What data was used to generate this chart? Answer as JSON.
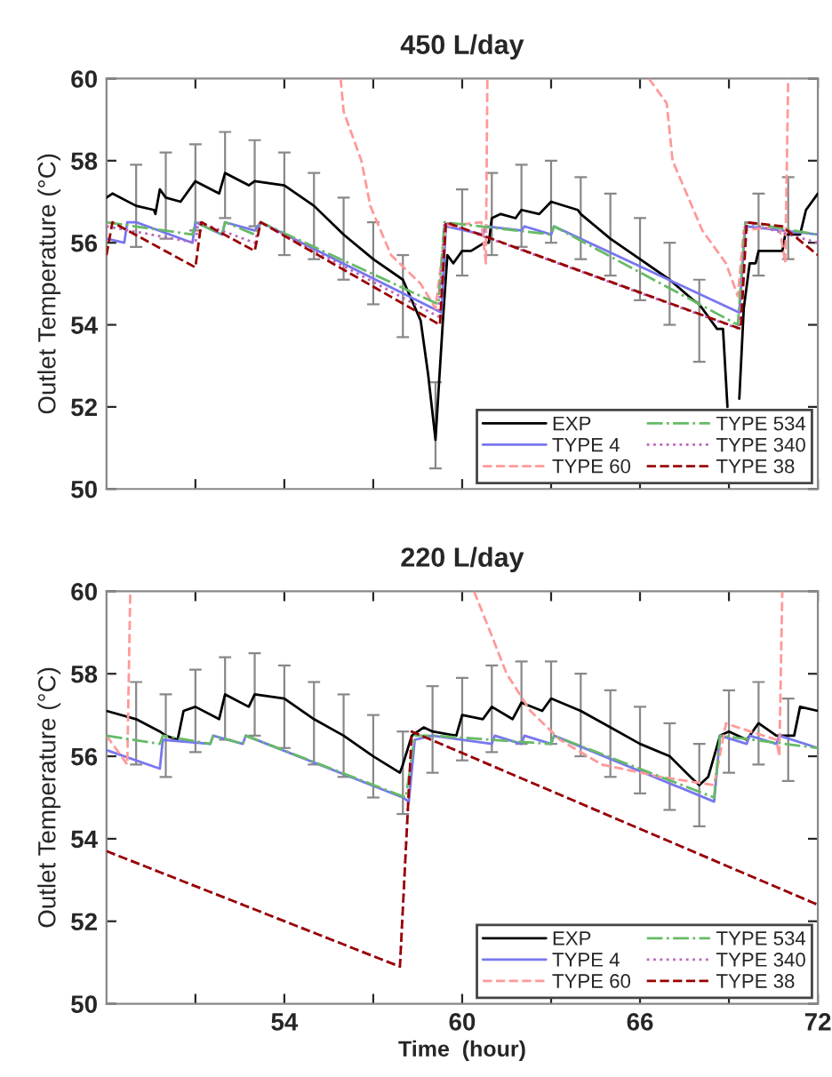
{
  "chart_data": [
    {
      "type": "line",
      "title": "450 L/day",
      "ylabel": "Outlet Temperature (°C)",
      "xlim": [
        48,
        72
      ],
      "ylim": [
        50,
        60
      ],
      "xticks": [
        {
          "value": 51,
          "label": null
        },
        {
          "value": 54,
          "label": null
        },
        {
          "value": 57,
          "label": null
        },
        {
          "value": 60,
          "label": null
        },
        {
          "value": 63,
          "label": null
        },
        {
          "value": 66,
          "label": null
        },
        {
          "value": 69,
          "label": null
        },
        {
          "value": 72,
          "label": null
        }
      ],
      "yticks": [
        50,
        52,
        54,
        56,
        58,
        60
      ],
      "tick_labels": "y",
      "grid": false,
      "legend": "bottom right",
      "series": [
        {
          "name": "EXP",
          "color": "#000000",
          "line_style": "solid",
          "x": [
            48.0,
            48.2,
            49.0,
            49.6,
            49.65,
            49.8,
            50.0,
            50.5,
            51.0,
            51.8,
            52.0,
            52.8,
            53.0,
            54.0,
            55.0,
            56.0,
            57.0,
            58.0,
            58.6,
            58.85,
            59.1,
            59.35,
            59.5,
            59.7,
            60.0,
            60.3,
            60.75,
            60.9,
            61.0,
            61.3,
            61.8,
            62.0,
            62.6,
            63.0,
            63.9,
            64.0,
            65.0,
            66.0,
            67.0,
            67.8,
            68.0,
            68.6,
            68.8,
            68.95,
            69.1,
            69.35,
            69.5,
            69.7,
            69.9,
            70.0,
            70.5,
            70.8,
            70.9,
            71.0,
            71.4,
            71.6,
            72.0
          ],
          "values": [
            57.1,
            57.2,
            56.9,
            56.8,
            56.7,
            57.3,
            57.1,
            57.0,
            57.5,
            57.2,
            57.7,
            57.4,
            57.5,
            57.4,
            56.9,
            56.2,
            55.6,
            55.1,
            54.1,
            52.8,
            51.2,
            54.1,
            55.7,
            55.5,
            55.8,
            55.8,
            56.0,
            56.0,
            56.6,
            56.7,
            56.6,
            56.8,
            56.7,
            57.0,
            56.8,
            56.7,
            56.1,
            55.6,
            55.1,
            54.6,
            54.5,
            53.9,
            53.9,
            52.0,
            null,
            52.2,
            54.4,
            55.5,
            55.5,
            55.8,
            55.8,
            55.8,
            56.2,
            56.2,
            56.2,
            56.8,
            57.2
          ],
          "errors": [
            null,
            null,
            [
              55.9,
              57.9
            ],
            null,
            null,
            null,
            [
              56.1,
              58.2
            ],
            null,
            [
              56.3,
              58.4
            ],
            null,
            [
              56.6,
              58.7
            ],
            null,
            [
              56.4,
              58.5
            ],
            [
              55.7,
              58.2
            ],
            [
              55.6,
              57.7
            ],
            [
              55.1,
              57.1
            ],
            [
              54.5,
              56.5
            ],
            [
              53.7,
              55.7
            ],
            null,
            null,
            [
              50.5,
              52.6
            ],
            null,
            null,
            null,
            [
              55.2,
              57.3
            ],
            null,
            null,
            null,
            [
              55.7,
              57.7
            ],
            null,
            null,
            [
              55.9,
              57.9
            ],
            null,
            [
              56.0,
              58.0
            ],
            null,
            [
              55.6,
              57.6
            ],
            [
              55.2,
              57.2
            ],
            [
              54.6,
              56.6
            ],
            [
              54.0,
              56.0
            ],
            null,
            [
              53.1,
              55.1
            ],
            null,
            null,
            null,
            null,
            null,
            null,
            null,
            null,
            [
              55.2,
              57.2
            ],
            null,
            null,
            null,
            [
              55.6,
              57.6
            ],
            null,
            null,
            null
          ]
        },
        {
          "name": "TYPE 4",
          "color": "#7777ee",
          "line_style": "solid",
          "x": [
            48,
            48.6,
            48.7,
            49.0,
            50.9,
            51.0,
            51.9,
            52.0,
            53.0,
            53.2,
            59.3,
            59.45,
            60.7,
            60.8,
            62.0,
            62.1,
            63.0,
            63.1,
            69.35,
            69.55,
            72
          ],
          "values": [
            56.1,
            56.0,
            56.5,
            56.5,
            56.0,
            56.5,
            56.2,
            56.5,
            56.3,
            56.5,
            54.3,
            56.4,
            56.2,
            56.4,
            56.3,
            56.4,
            56.2,
            56.4,
            54.3,
            56.4,
            56.2
          ]
        },
        {
          "name": "TYPE 60",
          "color": "#ff9999",
          "line_style": "dashed",
          "x": [
            55.9,
            56.0,
            56.6,
            56.9,
            57.6,
            58.6,
            59.1,
            59.45,
            60.65,
            60.8,
            60.85,
            60.9,
            66.3,
            66.9,
            67.1,
            68.1,
            68.9,
            69.3,
            69.5,
            70.7,
            70.9,
            71.0
          ],
          "values": [
            60,
            59.2,
            58.0,
            56.9,
            55.7,
            55.0,
            54.4,
            56.4,
            56.5,
            55.5,
            60,
            null,
            60,
            59.4,
            58.0,
            56.3,
            55.5,
            54.7,
            56.3,
            56.4,
            55.5,
            60
          ]
        },
        {
          "name": "TYPE 534",
          "color": "#66bb66",
          "line_style": "dashdot",
          "x": [
            48,
            50.9,
            51.0,
            51.9,
            52.0,
            53.0,
            53.2,
            59.2,
            59.4,
            63.0,
            63.1,
            69.3,
            69.55,
            72
          ],
          "values": [
            56.5,
            56.2,
            56.5,
            56.2,
            56.5,
            56.2,
            56.5,
            54.5,
            56.5,
            56.2,
            56.4,
            54.0,
            56.5,
            56.2
          ]
        },
        {
          "name": "TYPE 340",
          "color": "#bb66bb",
          "line_style": "dotted",
          "x": [
            48,
            51.0,
            51.1,
            53.0,
            53.2,
            59.2,
            59.4,
            69.35,
            69.55,
            72
          ],
          "values": [
            56.4,
            56.0,
            56.5,
            56.0,
            56.5,
            54.2,
            56.5,
            53.9,
            56.5,
            56.0
          ]
        },
        {
          "name": "TYPE 38",
          "color": "#990000",
          "line_style": "dashed",
          "x": [
            48,
            48.2,
            51.0,
            51.2,
            53.0,
            53.2,
            59.25,
            59.45,
            69.4,
            69.6,
            70.8,
            72
          ],
          "values": [
            55.7,
            56.5,
            55.4,
            56.5,
            55.8,
            56.5,
            54.0,
            56.5,
            53.9,
            56.5,
            56.4,
            55.7
          ]
        }
      ]
    },
    {
      "type": "line",
      "title": "220 L/day",
      "xlabel": "Time  (hour)",
      "ylabel": "Outlet Temperature (°C)",
      "xlim": [
        48,
        72
      ],
      "ylim": [
        50,
        60
      ],
      "xticks": [
        {
          "value": 51,
          "label": null
        },
        54,
        {
          "value": 57,
          "label": null
        },
        60,
        {
          "value": 63,
          "label": null
        },
        66,
        {
          "value": 69,
          "label": null
        },
        72
      ],
      "yticks": [
        50,
        52,
        54,
        56,
        58,
        60
      ],
      "grid": false,
      "legend": "bottom right",
      "series": [
        {
          "name": "EXP",
          "color": "#000000",
          "line_style": "solid",
          "x": [
            48.0,
            49.0,
            49.8,
            50.0,
            50.4,
            50.6,
            51.0,
            51.8,
            52.0,
            52.8,
            53.0,
            54.0,
            55.0,
            56.0,
            57.0,
            57.9,
            58.0,
            58.3,
            58.7,
            59.0,
            59.8,
            60.0,
            60.7,
            61.0,
            61.7,
            62.0,
            62.7,
            63.0,
            64.0,
            65.0,
            66.0,
            67.0,
            67.7,
            68.0,
            68.3,
            68.7,
            69.0,
            69.6,
            70.0,
            70.6,
            71.0,
            71.2,
            71.4,
            72.0
          ],
          "values": [
            57.1,
            56.9,
            56.6,
            56.5,
            56.4,
            57.1,
            57.2,
            56.9,
            57.5,
            57.2,
            57.5,
            57.4,
            56.9,
            56.5,
            56.0,
            55.6,
            55.8,
            56.5,
            56.7,
            56.6,
            56.5,
            57.0,
            56.9,
            57.2,
            56.9,
            57.3,
            57.1,
            57.4,
            57.1,
            56.7,
            56.3,
            56.0,
            55.5,
            55.3,
            55.5,
            56.5,
            56.6,
            56.4,
            56.8,
            56.5,
            56.5,
            56.5,
            57.2,
            57.1
          ],
          "errors": [
            null,
            [
              55.8,
              57.8
            ],
            null,
            [
              55.5,
              57.5
            ],
            null,
            null,
            [
              56.1,
              58.1
            ],
            null,
            [
              56.4,
              58.4
            ],
            null,
            [
              56.5,
              58.5
            ],
            [
              56.2,
              58.2
            ],
            [
              55.8,
              57.8
            ],
            [
              55.5,
              57.5
            ],
            [
              55.0,
              57.0
            ],
            null,
            [
              54.6,
              56.6
            ],
            null,
            null,
            [
              55.6,
              57.7
            ],
            null,
            [
              55.9,
              57.9
            ],
            null,
            [
              56.1,
              58.2
            ],
            null,
            [
              56.3,
              58.3
            ],
            null,
            [
              56.3,
              58.3
            ],
            [
              56.0,
              58.0
            ],
            [
              55.5,
              57.6
            ],
            [
              55.1,
              57.2
            ],
            [
              54.7,
              56.8
            ],
            null,
            [
              54.3,
              56.3
            ],
            null,
            null,
            [
              55.6,
              57.6
            ],
            null,
            [
              55.8,
              57.8
            ],
            null,
            [
              55.4,
              57.4
            ],
            null,
            null,
            null
          ]
        },
        {
          "name": "TYPE 4",
          "color": "#7777ee",
          "line_style": "solid",
          "x": [
            48,
            49.8,
            49.9,
            51.5,
            51.6,
            52.6,
            52.7,
            58.0,
            58.2,
            58.4,
            59.0,
            61.0,
            61.1,
            62.0,
            62.1,
            63.0,
            63.1,
            68.5,
            68.7,
            69.6,
            69.7,
            70.6,
            70.7,
            72
          ],
          "values": [
            56.15,
            55.7,
            56.4,
            56.3,
            56.5,
            56.3,
            56.5,
            55.0,
            54.9,
            56.4,
            56.5,
            56.3,
            56.5,
            56.3,
            56.5,
            56.3,
            56.5,
            54.9,
            56.5,
            56.3,
            56.5,
            56.3,
            56.5,
            56.2
          ]
        },
        {
          "name": "TYPE 60",
          "color": "#ff9999",
          "line_style": "dashed",
          "x": [
            48,
            48.7,
            48.8,
            48.85,
            48.9,
            60.4,
            60.9,
            61.5,
            62.3,
            63.3,
            64.7,
            66.7,
            68.5,
            68.9,
            69.3,
            70.6,
            70.7,
            70.8
          ],
          "values": [
            56.5,
            55.8,
            59.9,
            60,
            null,
            60,
            59.1,
            58.0,
            57.1,
            56.4,
            55.8,
            55.5,
            55.3,
            56.8,
            56.7,
            56.4,
            56.0,
            60
          ]
        },
        {
          "name": "TYPE 534",
          "color": "#66bb66",
          "line_style": "dashdot",
          "x": [
            48,
            49.8,
            49.9,
            51.5,
            51.6,
            52.6,
            52.7,
            58.1,
            58.4,
            59.0,
            63.0,
            63.1,
            68.5,
            68.7,
            72
          ],
          "values": [
            56.5,
            56.3,
            56.5,
            56.3,
            56.5,
            56.3,
            56.5,
            55.0,
            56.5,
            56.5,
            56.3,
            56.5,
            55.0,
            56.5,
            56.2
          ]
        },
        {
          "name": "TYPE 340",
          "color": "#bb66bb",
          "line_style": "dotted",
          "x": [
            48,
            57.9,
            58.3,
            72
          ],
          "values": [
            53.7,
            50.9,
            56.6,
            52.4
          ]
        },
        {
          "name": "TYPE 38",
          "color": "#990000",
          "line_style": "dashed",
          "x": [
            48,
            57.9,
            58.3,
            72
          ],
          "values": [
            53.7,
            50.9,
            56.6,
            52.4
          ]
        }
      ]
    }
  ]
}
